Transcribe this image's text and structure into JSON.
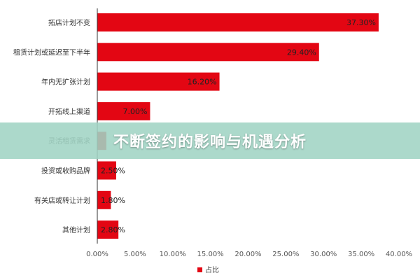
{
  "overlay": {
    "title": "不断签约的影响与机遇分析"
  },
  "colors": {
    "bar": "#e30613",
    "axis": "#333333",
    "grid": "#d9d9d9"
  },
  "chart_data": {
    "type": "bar",
    "orientation": "horizontal",
    "categories": [
      "拓店计划不变",
      "租赁计划或延迟至下半年",
      "年内无扩张计划",
      "开拓线上渠道",
      "灵活租赁需求",
      "投资或收购品牌",
      "有关店或转让计划",
      "其他计划"
    ],
    "series": [
      {
        "name": "占比",
        "values": [
          37.3,
          29.4,
          16.2,
          7.0,
          1.2,
          2.5,
          1.8,
          2.8
        ]
      }
    ],
    "value_labels": [
      "37.30%",
      "29.40%",
      "16.20%",
      "7.00%",
      "",
      "2.50%",
      "1.80%",
      "2.80%"
    ],
    "xlim": [
      0,
      40
    ],
    "x_ticks": [
      0,
      5,
      10,
      15,
      20,
      25,
      30,
      35,
      40
    ],
    "x_tick_labels": [
      "0.00%",
      "5.00%",
      "10.00%",
      "15.00%",
      "20.00%",
      "25.00%",
      "30.00%",
      "35.00%",
      "40.00%"
    ],
    "legend": {
      "position": "bottom",
      "label": "占比"
    },
    "grid": false
  }
}
